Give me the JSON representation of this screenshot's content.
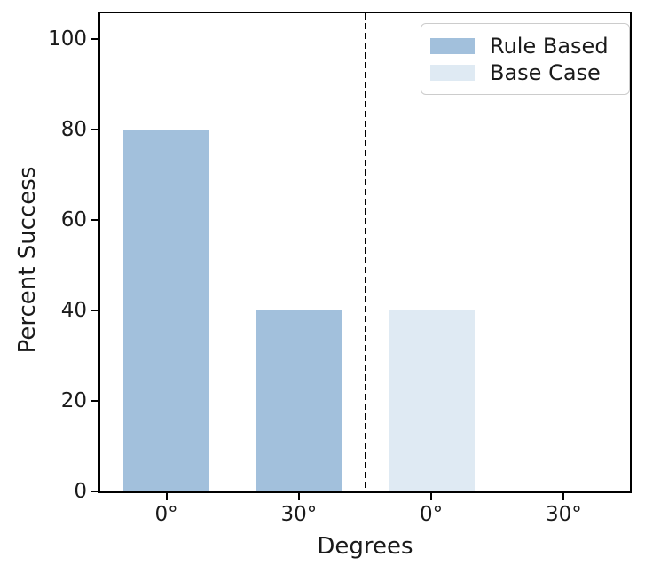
{
  "figure": {
    "background": "#ffffff",
    "text_color": "#1a1a1a",
    "spine_color": "#000000"
  },
  "chart_data": {
    "type": "bar",
    "title": "",
    "xlabel": "Degrees",
    "ylabel": "Percent Success",
    "categories": [
      "0°",
      "30°",
      "0°",
      "30°"
    ],
    "bars": [
      {
        "category": "0°",
        "series": "Rule Based",
        "value": 80
      },
      {
        "category": "30°",
        "series": "Rule Based",
        "value": 40
      },
      {
        "category": "0°",
        "series": "Base Case",
        "value": 40
      },
      {
        "category": "30°",
        "series": "Base Case",
        "value": 0
      }
    ],
    "series": [
      {
        "name": "Rule Based",
        "color": "#a2c0dc"
      },
      {
        "name": "Base Case",
        "color": "#dfeaf3"
      }
    ],
    "yticks": [
      0,
      20,
      40,
      60,
      80,
      100
    ],
    "ylim": [
      0,
      105.7
    ],
    "bar_width_fraction": 0.65,
    "separator": {
      "style": "dashed",
      "color": "#000000",
      "after_category_index": 2
    },
    "grid": false,
    "legend": {
      "position": "upper right",
      "entries": [
        {
          "label": "Rule Based",
          "color": "#a2c0dc"
        },
        {
          "label": "Base Case",
          "color": "#dfeaf3"
        }
      ]
    }
  }
}
